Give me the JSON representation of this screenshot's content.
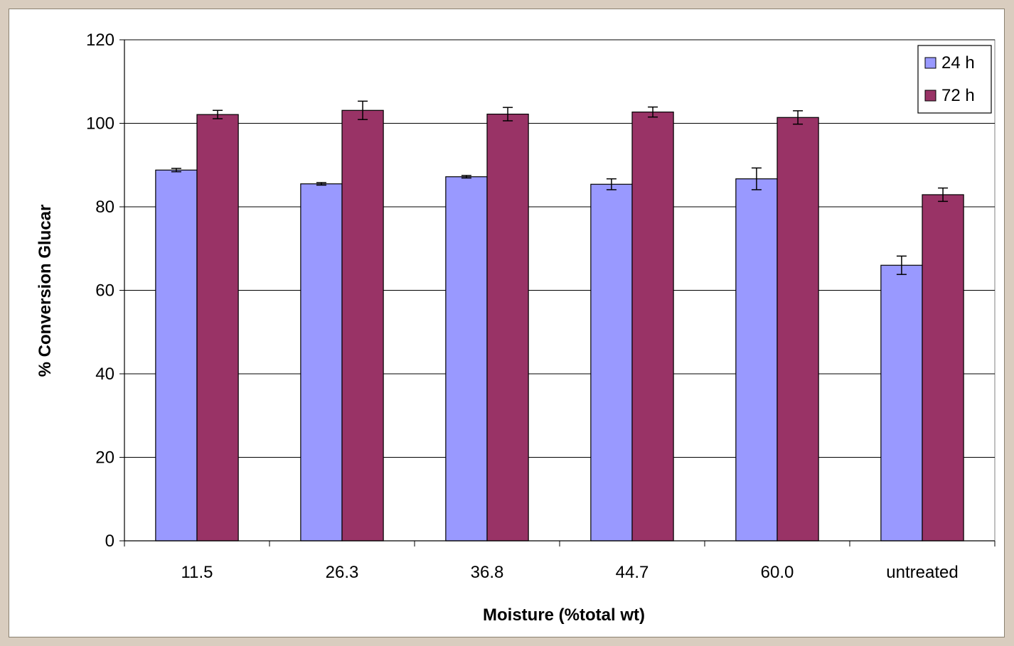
{
  "chart_data": {
    "type": "bar",
    "title": "",
    "xlabel": "Moisture (%total wt)",
    "ylabel": "% Conversion Glucar",
    "categories": [
      "11.5",
      "26.3",
      "36.8",
      "44.7",
      "60.0",
      "untreated"
    ],
    "series": [
      {
        "name": "24 h",
        "color": "#9999ff",
        "values": [
          88.8,
          85.5,
          87.2,
          85.4,
          86.7,
          66.0
        ],
        "errors": [
          0.4,
          0.3,
          0.3,
          1.3,
          2.6,
          2.2
        ]
      },
      {
        "name": "72 h",
        "color": "#993366",
        "values": [
          102.1,
          103.1,
          102.2,
          102.7,
          101.4,
          82.9
        ],
        "errors": [
          1.0,
          2.2,
          1.6,
          1.2,
          1.6,
          1.6
        ]
      }
    ],
    "ylim": [
      0,
      120
    ],
    "yticks": [
      0,
      20,
      40,
      60,
      80,
      100,
      120
    ],
    "grid": true,
    "legend_position": "top-right"
  }
}
